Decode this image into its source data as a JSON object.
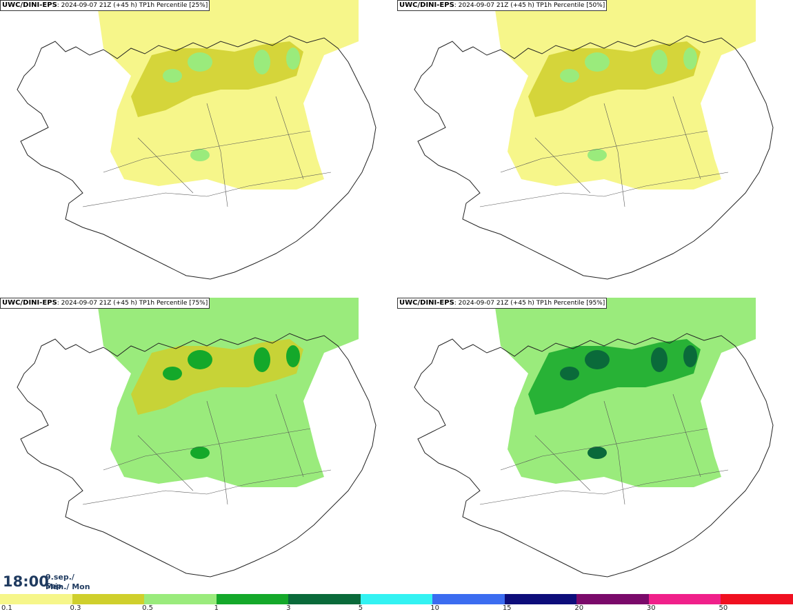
{
  "panels": [
    {
      "model": "UWC/DINI-EPS",
      "info": ": 2024-09-07 21Z (+45 h) TP1h Percentile [25%]",
      "fill": "#f6f68a",
      "mid": "#cfcf2c",
      "dark": "#9aeb7c"
    },
    {
      "model": "UWC/DINI-EPS",
      "info": ": 2024-09-07 21Z (+45 h) TP1h Percentile [50%]",
      "fill": "#f6f68a",
      "mid": "#cfcf2c",
      "dark": "#9aeb7c"
    },
    {
      "model": "UWC/DINI-EPS",
      "info": ": 2024-09-07 21Z (+45 h) TP1h Percentile [75%]",
      "fill": "#9aeb7c",
      "mid": "#cfcf2c",
      "dark": "#14a82a"
    },
    {
      "model": "UWC/DINI-EPS",
      "info": ": 2024-09-07 21Z (+45 h) TP1h Percentile [95%]",
      "fill": "#9aeb7c",
      "mid": "#14a82a",
      "dark": "#0a6a3a"
    }
  ],
  "valid_time": {
    "time": "18:00",
    "date_line1": "9.sep./ Sep",
    "date_line2": "Mán./ Mon"
  },
  "legend": {
    "colors": [
      "#f6f68a",
      "#cfcf2c",
      "#9aeb7c",
      "#14a82a",
      "#0a6a3a",
      "#33f2f2",
      "#3b6cf0",
      "#0d0d7a",
      "#7a0a6a",
      "#f0208a",
      "#f01020"
    ],
    "labels": [
      "0.1",
      "0.3",
      "0.5",
      "1",
      "3",
      "5",
      "10",
      "15",
      "20",
      "30",
      "50"
    ]
  }
}
